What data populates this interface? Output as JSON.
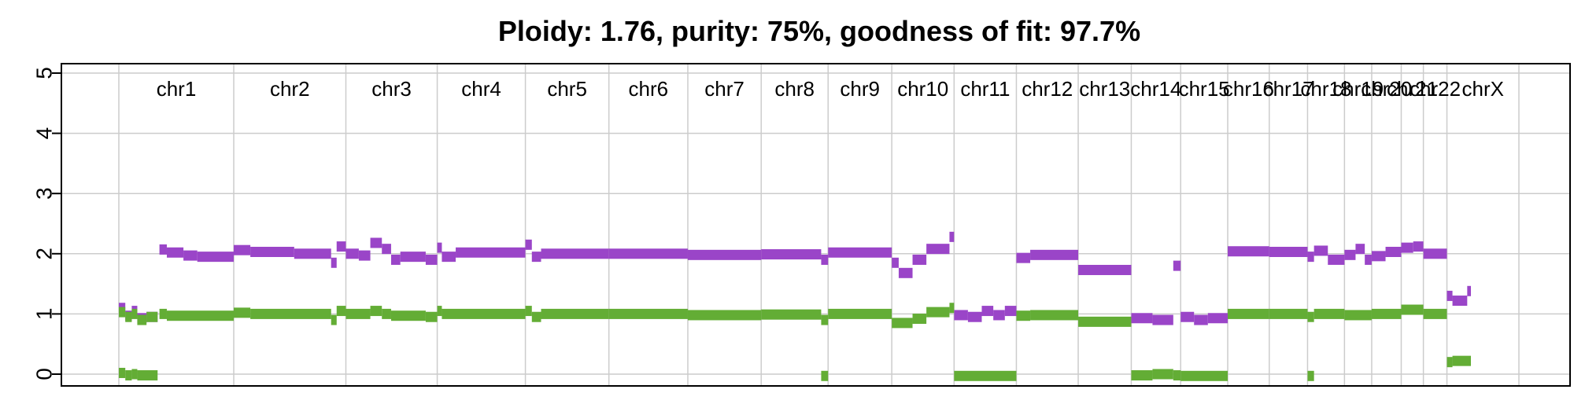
{
  "chart_data": {
    "type": "scatter",
    "title": "Ploidy: 1.76, purity: 75%, goodness of fit: 97.7%",
    "ylim": [
      0,
      5
    ],
    "yticks": [
      "0",
      "1",
      "2",
      "3",
      "4",
      "5"
    ],
    "grid": true,
    "colors": {
      "major_copy_number": "#9a45c8",
      "minor_copy_number": "#63ad35",
      "grid": "#cccccc",
      "frame": "#000000"
    },
    "chromosomes": [
      {
        "label": "chr1",
        "start": 0,
        "end": 249
      },
      {
        "label": "chr2",
        "start": 249,
        "end": 492
      },
      {
        "label": "chr3",
        "start": 492,
        "end": 690
      },
      {
        "label": "chr4",
        "start": 690,
        "end": 881
      },
      {
        "label": "chr5",
        "start": 881,
        "end": 1062
      },
      {
        "label": "chr6",
        "start": 1062,
        "end": 1233
      },
      {
        "label": "chr7",
        "start": 1233,
        "end": 1392
      },
      {
        "label": "chr8",
        "start": 1392,
        "end": 1537
      },
      {
        "label": "chr9",
        "start": 1537,
        "end": 1675
      },
      {
        "label": "chr10",
        "start": 1675,
        "end": 1810
      },
      {
        "label": "chr11",
        "start": 1810,
        "end": 1945
      },
      {
        "label": "chr12",
        "start": 1945,
        "end": 2079
      },
      {
        "label": "chr13",
        "start": 2079,
        "end": 2194
      },
      {
        "label": "chr14",
        "start": 2194,
        "end": 2301
      },
      {
        "label": "chr15",
        "start": 2301,
        "end": 2403
      },
      {
        "label": "chr16",
        "start": 2403,
        "end": 2493
      },
      {
        "label": "chr17",
        "start": 2493,
        "end": 2576
      },
      {
        "label": "chr18",
        "start": 2576,
        "end": 2656
      },
      {
        "label": "chr19",
        "start": 2656,
        "end": 2715
      },
      {
        "label": "chr20",
        "start": 2715,
        "end": 2779
      },
      {
        "label": "chr21",
        "start": 2779,
        "end": 2827
      },
      {
        "label": "chr22",
        "start": 2827,
        "end": 2878
      },
      {
        "label": "chrX",
        "start": 2878,
        "end": 3034
      }
    ],
    "series": [
      {
        "segments": [
          {
            "x": [
              0,
              14
            ],
            "y": 1.1
          },
          {
            "x": [
              14,
              28
            ],
            "y": 0.97
          },
          {
            "x": [
              28,
              40
            ],
            "y": 1.05
          },
          {
            "x": [
              40,
              60
            ],
            "y": 0.93
          },
          {
            "x": [
              60,
              84
            ],
            "y": 0.95
          },
          {
            "x": [
              88,
              104
            ],
            "y": 2.07
          },
          {
            "x": [
              104,
              140
            ],
            "y": 2.02
          },
          {
            "x": [
              140,
              170
            ],
            "y": 1.97
          },
          {
            "x": [
              170,
              249
            ],
            "y": 1.95
          },
          {
            "x": [
              249,
              285
            ],
            "y": 2.06
          },
          {
            "x": [
              285,
              380
            ],
            "y": 2.03
          },
          {
            "x": [
              380,
              460
            ],
            "y": 2.0
          },
          {
            "x": [
              460,
              472
            ],
            "y": 1.85
          },
          {
            "x": [
              472,
              492
            ],
            "y": 2.12
          },
          {
            "x": [
              492,
              520
            ],
            "y": 2.0
          },
          {
            "x": [
              520,
              545
            ],
            "y": 1.97
          },
          {
            "x": [
              545,
              570
            ],
            "y": 2.18
          },
          {
            "x": [
              570,
              590
            ],
            "y": 2.08
          },
          {
            "x": [
              590,
              610
            ],
            "y": 1.9
          },
          {
            "x": [
              610,
              665
            ],
            "y": 1.95
          },
          {
            "x": [
              665,
              690
            ],
            "y": 1.9
          },
          {
            "x": [
              690,
              700
            ],
            "y": 2.1
          },
          {
            "x": [
              700,
              730
            ],
            "y": 1.95
          },
          {
            "x": [
              730,
              881
            ],
            "y": 2.02
          },
          {
            "x": [
              881,
              895
            ],
            "y": 2.15
          },
          {
            "x": [
              895,
              915
            ],
            "y": 1.95
          },
          {
            "x": [
              915,
              1062
            ],
            "y": 2.0
          },
          {
            "x": [
              1062,
              1233
            ],
            "y": 2.0
          },
          {
            "x": [
              1233,
              1392
            ],
            "y": 1.98
          },
          {
            "x": [
              1392,
              1522
            ],
            "y": 1.99
          },
          {
            "x": [
              1522,
              1537
            ],
            "y": 1.9
          },
          {
            "x": [
              1537,
              1675
            ],
            "y": 2.02
          },
          {
            "x": [
              1675,
              1690
            ],
            "y": 1.85
          },
          {
            "x": [
              1690,
              1720
            ],
            "y": 1.68
          },
          {
            "x": [
              1720,
              1750
            ],
            "y": 1.9
          },
          {
            "x": [
              1750,
              1800
            ],
            "y": 2.08
          },
          {
            "x": [
              1800,
              1810
            ],
            "y": 2.28
          },
          {
            "x": [
              1810,
              1840
            ],
            "y": 0.98
          },
          {
            "x": [
              1840,
              1870
            ],
            "y": 0.95
          },
          {
            "x": [
              1870,
              1895
            ],
            "y": 1.05
          },
          {
            "x": [
              1895,
              1920
            ],
            "y": 0.98
          },
          {
            "x": [
              1920,
              1945
            ],
            "y": 1.05
          },
          {
            "x": [
              1945,
              1975
            ],
            "y": 1.93
          },
          {
            "x": [
              1975,
              2079
            ],
            "y": 1.98
          },
          {
            "x": [
              2079,
              2194
            ],
            "y": 1.73
          },
          {
            "x": [
              2194,
              2240
            ],
            "y": 0.93
          },
          {
            "x": [
              2240,
              2285
            ],
            "y": 0.9
          },
          {
            "x": [
              2285,
              2301
            ],
            "y": 1.8
          },
          {
            "x": [
              2301,
              2330
            ],
            "y": 0.95
          },
          {
            "x": [
              2330,
              2360
            ],
            "y": 0.9
          },
          {
            "x": [
              2360,
              2403
            ],
            "y": 0.93
          },
          {
            "x": [
              2403,
              2493
            ],
            "y": 2.04
          },
          {
            "x": [
              2493,
              2576
            ],
            "y": 2.03
          },
          {
            "x": [
              2576,
              2590
            ],
            "y": 1.95
          },
          {
            "x": [
              2590,
              2620
            ],
            "y": 2.05
          },
          {
            "x": [
              2620,
              2656
            ],
            "y": 1.9
          },
          {
            "x": [
              2656,
              2680
            ],
            "y": 1.98
          },
          {
            "x": [
              2680,
              2700
            ],
            "y": 2.08
          },
          {
            "x": [
              2700,
              2715
            ],
            "y": 1.9
          },
          {
            "x": [
              2715,
              2745
            ],
            "y": 1.96
          },
          {
            "x": [
              2745,
              2779
            ],
            "y": 2.03
          },
          {
            "x": [
              2779,
              2805
            ],
            "y": 2.1
          },
          {
            "x": [
              2805,
              2827
            ],
            "y": 2.12
          },
          {
            "x": [
              2827,
              2878
            ],
            "y": 2.0
          },
          {
            "x": [
              2878,
              2890
            ],
            "y": 1.3
          },
          {
            "x": [
              2890,
              2922
            ],
            "y": 1.22
          },
          {
            "x": [
              2922,
              2930
            ],
            "y": 1.38
          }
        ]
      },
      {
        "segments": [
          {
            "x": [
              0,
              14
            ],
            "y": 1.03
          },
          {
            "x": [
              14,
              28
            ],
            "y": 0.95
          },
          {
            "x": [
              28,
              40
            ],
            "y": 1.0
          },
          {
            "x": [
              40,
              60
            ],
            "y": 0.9
          },
          {
            "x": [
              60,
              84
            ],
            "y": 0.95
          },
          {
            "x": [
              88,
              104
            ],
            "y": 1.0
          },
          {
            "x": [
              104,
              249
            ],
            "y": 0.97
          },
          {
            "x": [
              249,
              285
            ],
            "y": 1.02
          },
          {
            "x": [
              285,
              460
            ],
            "y": 1.0
          },
          {
            "x": [
              460,
              472
            ],
            "y": 0.9
          },
          {
            "x": [
              472,
              492
            ],
            "y": 1.05
          },
          {
            "x": [
              492,
              545
            ],
            "y": 1.0
          },
          {
            "x": [
              545,
              570
            ],
            "y": 1.05
          },
          {
            "x": [
              570,
              590
            ],
            "y": 1.0
          },
          {
            "x": [
              590,
              665
            ],
            "y": 0.97
          },
          {
            "x": [
              665,
              690
            ],
            "y": 0.95
          },
          {
            "x": [
              690,
              700
            ],
            "y": 1.05
          },
          {
            "x": [
              700,
              881
            ],
            "y": 1.0
          },
          {
            "x": [
              881,
              895
            ],
            "y": 1.05
          },
          {
            "x": [
              895,
              915
            ],
            "y": 0.95
          },
          {
            "x": [
              915,
              1062
            ],
            "y": 1.0
          },
          {
            "x": [
              1062,
              1233
            ],
            "y": 1.0
          },
          {
            "x": [
              1233,
              1392
            ],
            "y": 0.98
          },
          {
            "x": [
              1392,
              1522
            ],
            "y": 0.99
          },
          {
            "x": [
              1522,
              1537
            ],
            "y": 0.9
          },
          {
            "x": [
              1537,
              1675
            ],
            "y": 1.0
          },
          {
            "x": [
              1675,
              1720
            ],
            "y": 0.85
          },
          {
            "x": [
              1720,
              1750
            ],
            "y": 0.92
          },
          {
            "x": [
              1750,
              1800
            ],
            "y": 1.03
          },
          {
            "x": [
              1800,
              1810
            ],
            "y": 1.1
          },
          {
            "x": [
              1945,
              1975
            ],
            "y": 0.97
          },
          {
            "x": [
              1975,
              2079
            ],
            "y": 0.98
          },
          {
            "x": [
              2079,
              2194
            ],
            "y": 0.87
          },
          {
            "x": [
              2403,
              2493
            ],
            "y": 1.0
          },
          {
            "x": [
              2493,
              2576
            ],
            "y": 1.0
          },
          {
            "x": [
              2576,
              2590
            ],
            "y": 0.95
          },
          {
            "x": [
              2590,
              2656
            ],
            "y": 1.0
          },
          {
            "x": [
              2656,
              2715
            ],
            "y": 0.98
          },
          {
            "x": [
              2715,
              2779
            ],
            "y": 1.0
          },
          {
            "x": [
              2779,
              2827
            ],
            "y": 1.07
          },
          {
            "x": [
              2827,
              2878
            ],
            "y": 1.0
          },
          {
            "x": [
              2878,
              2890
            ],
            "y": 0.2
          },
          {
            "x": [
              2890,
              2930
            ],
            "y": 0.22
          }
        ]
      },
      {
        "segments": [
          {
            "x": [
              0,
              14
            ],
            "y": 0.02
          },
          {
            "x": [
              14,
              28
            ],
            "y": -0.02
          },
          {
            "x": [
              28,
              40
            ],
            "y": 0.0
          },
          {
            "x": [
              40,
              84
            ],
            "y": -0.02
          },
          {
            "x": [
              1522,
              1537
            ],
            "y": -0.03
          },
          {
            "x": [
              1810,
              1945
            ],
            "y": -0.03
          },
          {
            "x": [
              2194,
              2240
            ],
            "y": -0.02
          },
          {
            "x": [
              2240,
              2285
            ],
            "y": 0.0
          },
          {
            "x": [
              2285,
              2301
            ],
            "y": -0.02
          },
          {
            "x": [
              2301,
              2403
            ],
            "y": -0.03
          },
          {
            "x": [
              2576,
              2590
            ],
            "y": -0.03
          }
        ]
      }
    ]
  }
}
